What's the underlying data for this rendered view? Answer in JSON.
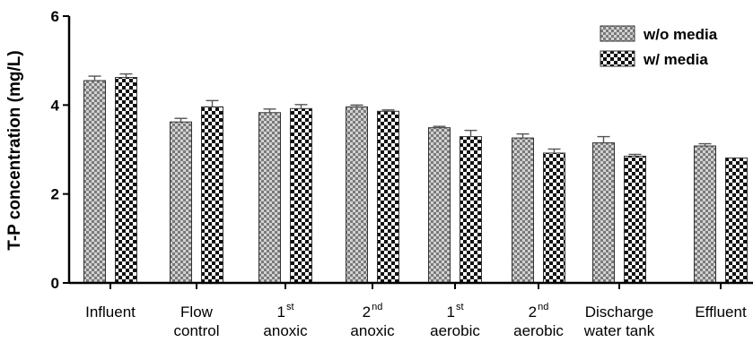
{
  "chart_data": {
    "type": "bar",
    "title": "",
    "xlabel": "",
    "ylabel": "T-P concentration (mg/L)",
    "ylim": [
      0,
      6
    ],
    "yticks": [
      "0",
      "2",
      "4",
      "6"
    ],
    "grid": false,
    "legend_position": "top-right",
    "categories": [
      {
        "lines": [
          {
            "text": "Influent"
          }
        ]
      },
      {
        "lines": [
          {
            "text": "Flow"
          },
          {
            "text": "control"
          }
        ]
      },
      {
        "lines": [
          {
            "text": "1",
            "sup": "st"
          },
          {
            "text": "anoxic"
          }
        ]
      },
      {
        "lines": [
          {
            "text": "2",
            "sup": "nd"
          },
          {
            "text": "anoxic"
          }
        ]
      },
      {
        "lines": [
          {
            "text": "1",
            "sup": "st"
          },
          {
            "text": "aerobic"
          }
        ]
      },
      {
        "lines": [
          {
            "text": "2",
            "sup": "nd"
          },
          {
            "text": "aerobic"
          }
        ]
      },
      {
        "lines": [
          {
            "text": "Discharge"
          },
          {
            "text": "water tank"
          }
        ]
      },
      {
        "lines": [
          {
            "text": "Effluent"
          }
        ]
      }
    ],
    "series": [
      {
        "name": "w/o media",
        "pattern": "fine-checker",
        "values": [
          4.55,
          3.62,
          3.83,
          3.96,
          3.49,
          3.26,
          3.15,
          3.08
        ],
        "errors": [
          0.1,
          0.08,
          0.08,
          0.04,
          0.03,
          0.09,
          0.14,
          0.05
        ]
      },
      {
        "name": "w/ media",
        "pattern": "coarse-checker",
        "values": [
          4.62,
          3.96,
          3.92,
          3.86,
          3.29,
          2.92,
          2.85,
          2.81
        ],
        "errors": [
          0.08,
          0.14,
          0.09,
          0.03,
          0.14,
          0.09,
          0.04,
          0.0
        ]
      }
    ],
    "colors": {
      "fine_checker_light": "#d2d2d2",
      "fine_checker_dark": "#7a7a7a",
      "coarse_checker_light": "#ffffff",
      "coarse_checker_dark": "#111111",
      "bar_outline": "#333333"
    }
  }
}
